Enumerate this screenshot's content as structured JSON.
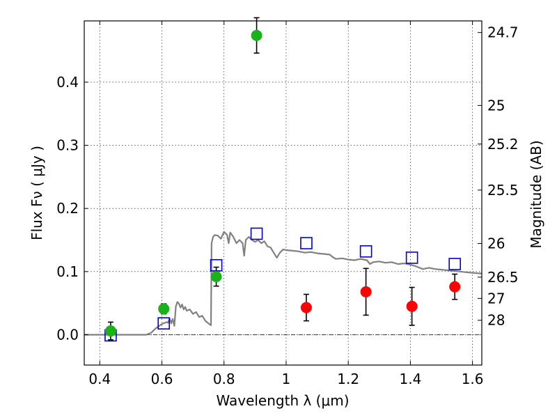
{
  "chart_data": {
    "type": "scatter",
    "xlabel": "Wavelength  λ (μm)",
    "ylabel": "Flux  Fν  ( μJy )",
    "right_ylabel": "Magnitude (AB)",
    "xlim": [
      0.35,
      1.63
    ],
    "ylim": [
      -0.048,
      0.497
    ],
    "x_ticks": [
      {
        "value": 0.4,
        "label": "0.4"
      },
      {
        "value": 0.6,
        "label": "0.6"
      },
      {
        "value": 0.8,
        "label": "0.8"
      },
      {
        "value": 1.0,
        "label": "1"
      },
      {
        "value": 1.2,
        "label": "1.2"
      },
      {
        "value": 1.4,
        "label": "1.4"
      },
      {
        "value": 1.6,
        "label": "1.6"
      }
    ],
    "y_ticks": [
      {
        "value": 0.0,
        "label": "0.0"
      },
      {
        "value": 0.1,
        "label": "0.1"
      },
      {
        "value": 0.2,
        "label": "0.2"
      },
      {
        "value": 0.3,
        "label": "0.3"
      },
      {
        "value": 0.4,
        "label": "0.4"
      }
    ],
    "right_ticks": [
      {
        "flux": 0.4786,
        "label": "24.7"
      },
      {
        "flux": 0.3631,
        "label": "25"
      },
      {
        "flux": 0.302,
        "label": "25.2"
      },
      {
        "flux": 0.2291,
        "label": "25.5"
      },
      {
        "flux": 0.1445,
        "label": "26"
      },
      {
        "flux": 0.0912,
        "label": "26.5"
      },
      {
        "flux": 0.0575,
        "label": "27"
      },
      {
        "flux": 0.0229,
        "label": "28"
      }
    ],
    "grid": true,
    "zero_line": true,
    "colors": {
      "green": "#1ab21a",
      "red": "#ff0000",
      "blue": "#0000cc",
      "model": "#808080",
      "errorbar": "#000000"
    },
    "series": [
      {
        "marker": "circle",
        "color": "#1ab21a",
        "points": [
          {
            "x": 0.435,
            "y": 0.006,
            "err": 0.014
          },
          {
            "x": 0.606,
            "y": 0.041,
            "err": 0.008
          },
          {
            "x": 0.775,
            "y": 0.092,
            "err": 0.015
          },
          {
            "x": 0.905,
            "y": 0.474,
            "err": 0.028
          }
        ]
      },
      {
        "marker": "circle",
        "color": "#ff0000",
        "points": [
          {
            "x": 1.065,
            "y": 0.043,
            "err": 0.021
          },
          {
            "x": 1.257,
            "y": 0.068,
            "err": 0.037
          },
          {
            "x": 1.405,
            "y": 0.045,
            "err": 0.03
          },
          {
            "x": 1.543,
            "y": 0.076,
            "err": 0.02
          }
        ]
      },
      {
        "marker": "open-square",
        "color": "#0000cc",
        "points": [
          {
            "x": 0.435,
            "y": -0.001
          },
          {
            "x": 0.606,
            "y": 0.018
          },
          {
            "x": 0.775,
            "y": 0.11
          },
          {
            "x": 0.905,
            "y": 0.16
          },
          {
            "x": 1.065,
            "y": 0.145
          },
          {
            "x": 1.257,
            "y": 0.132
          },
          {
            "x": 1.405,
            "y": 0.122
          },
          {
            "x": 1.543,
            "y": 0.112
          }
        ]
      },
      {
        "marker": "line",
        "color": "#808080",
        "points": [
          {
            "x": 0.35,
            "y": 0.0
          },
          {
            "x": 0.5,
            "y": 0.0
          },
          {
            "x": 0.55,
            "y": 0.0
          },
          {
            "x": 0.565,
            "y": 0.003
          },
          {
            "x": 0.58,
            "y": 0.01
          },
          {
            "x": 0.6,
            "y": 0.017
          },
          {
            "x": 0.615,
            "y": 0.02
          },
          {
            "x": 0.62,
            "y": 0.019
          },
          {
            "x": 0.625,
            "y": 0.026
          },
          {
            "x": 0.63,
            "y": 0.018
          },
          {
            "x": 0.635,
            "y": 0.025
          },
          {
            "x": 0.64,
            "y": 0.014
          },
          {
            "x": 0.645,
            "y": 0.045
          },
          {
            "x": 0.65,
            "y": 0.052
          },
          {
            "x": 0.655,
            "y": 0.049
          },
          {
            "x": 0.66,
            "y": 0.043
          },
          {
            "x": 0.665,
            "y": 0.048
          },
          {
            "x": 0.67,
            "y": 0.04
          },
          {
            "x": 0.675,
            "y": 0.044
          },
          {
            "x": 0.68,
            "y": 0.038
          },
          {
            "x": 0.69,
            "y": 0.04
          },
          {
            "x": 0.7,
            "y": 0.033
          },
          {
            "x": 0.71,
            "y": 0.036
          },
          {
            "x": 0.72,
            "y": 0.028
          },
          {
            "x": 0.73,
            "y": 0.03
          },
          {
            "x": 0.74,
            "y": 0.022
          },
          {
            "x": 0.75,
            "y": 0.018
          },
          {
            "x": 0.758,
            "y": 0.015
          },
          {
            "x": 0.76,
            "y": 0.145
          },
          {
            "x": 0.765,
            "y": 0.155
          },
          {
            "x": 0.77,
            "y": 0.158
          },
          {
            "x": 0.78,
            "y": 0.157
          },
          {
            "x": 0.79,
            "y": 0.152
          },
          {
            "x": 0.8,
            "y": 0.163
          },
          {
            "x": 0.81,
            "y": 0.158
          },
          {
            "x": 0.815,
            "y": 0.145
          },
          {
            "x": 0.82,
            "y": 0.162
          },
          {
            "x": 0.83,
            "y": 0.155
          },
          {
            "x": 0.84,
            "y": 0.145
          },
          {
            "x": 0.85,
            "y": 0.15
          },
          {
            "x": 0.86,
            "y": 0.145
          },
          {
            "x": 0.865,
            "y": 0.125
          },
          {
            "x": 0.87,
            "y": 0.15
          },
          {
            "x": 0.88,
            "y": 0.155
          },
          {
            "x": 0.89,
            "y": 0.15
          },
          {
            "x": 0.9,
            "y": 0.147
          },
          {
            "x": 0.91,
            "y": 0.15
          },
          {
            "x": 0.92,
            "y": 0.145
          },
          {
            "x": 0.93,
            "y": 0.148
          },
          {
            "x": 0.94,
            "y": 0.14
          },
          {
            "x": 0.95,
            "y": 0.138
          },
          {
            "x": 0.96,
            "y": 0.13
          },
          {
            "x": 0.97,
            "y": 0.122
          },
          {
            "x": 0.98,
            "y": 0.13
          },
          {
            "x": 0.99,
            "y": 0.135
          },
          {
            "x": 1.0,
            "y": 0.134
          },
          {
            "x": 1.02,
            "y": 0.133
          },
          {
            "x": 1.04,
            "y": 0.132
          },
          {
            "x": 1.06,
            "y": 0.13
          },
          {
            "x": 1.08,
            "y": 0.131
          },
          {
            "x": 1.1,
            "y": 0.129
          },
          {
            "x": 1.12,
            "y": 0.128
          },
          {
            "x": 1.14,
            "y": 0.127
          },
          {
            "x": 1.15,
            "y": 0.123
          },
          {
            "x": 1.16,
            "y": 0.12
          },
          {
            "x": 1.18,
            "y": 0.121
          },
          {
            "x": 1.2,
            "y": 0.119
          },
          {
            "x": 1.22,
            "y": 0.118
          },
          {
            "x": 1.24,
            "y": 0.12
          },
          {
            "x": 1.26,
            "y": 0.118
          },
          {
            "x": 1.27,
            "y": 0.112
          },
          {
            "x": 1.28,
            "y": 0.115
          },
          {
            "x": 1.3,
            "y": 0.116
          },
          {
            "x": 1.32,
            "y": 0.114
          },
          {
            "x": 1.34,
            "y": 0.115
          },
          {
            "x": 1.36,
            "y": 0.112
          },
          {
            "x": 1.38,
            "y": 0.113
          },
          {
            "x": 1.4,
            "y": 0.111
          },
          {
            "x": 1.42,
            "y": 0.108
          },
          {
            "x": 1.44,
            "y": 0.104
          },
          {
            "x": 1.46,
            "y": 0.106
          },
          {
            "x": 1.48,
            "y": 0.104
          },
          {
            "x": 1.5,
            "y": 0.103
          },
          {
            "x": 1.52,
            "y": 0.102
          },
          {
            "x": 1.54,
            "y": 0.101
          },
          {
            "x": 1.56,
            "y": 0.1
          },
          {
            "x": 1.58,
            "y": 0.099
          },
          {
            "x": 1.6,
            "y": 0.098
          },
          {
            "x": 1.63,
            "y": 0.097
          }
        ]
      }
    ]
  }
}
